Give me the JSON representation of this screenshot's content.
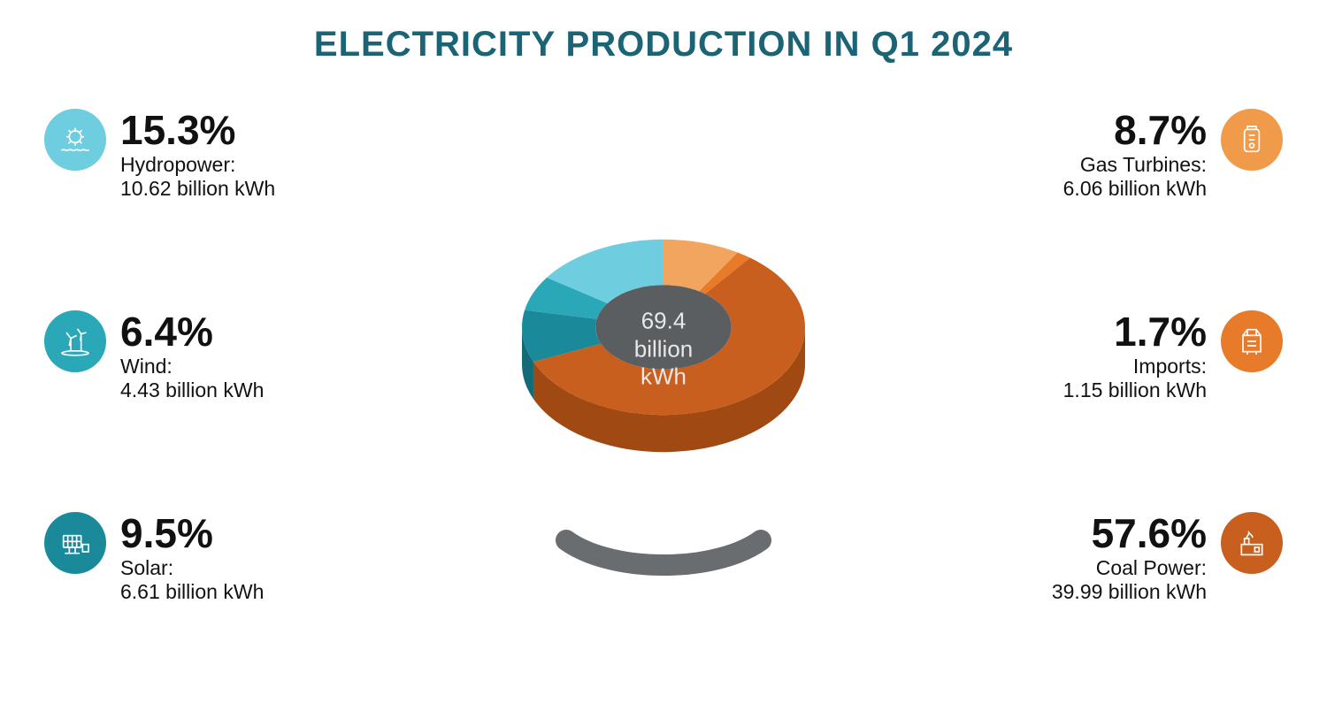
{
  "title": "ELECTRICITY PRODUCTION IN Q1 2024",
  "title_color": "#1a6475",
  "background_color": "#ffffff",
  "center": {
    "value": "69.4",
    "unit1": "billion",
    "unit2": "kWh",
    "bg_color": "#5b5e61",
    "text_color": "#e8e8e8"
  },
  "left": [
    {
      "percent": "15.3%",
      "label": "Hydropower:",
      "value": "10.62 billion kWh",
      "icon_color": "#6fcde0",
      "icon": "hydro"
    },
    {
      "percent": "6.4%",
      "label": "Wind:",
      "value": "4.43 billion kWh",
      "icon_color": "#2aa8b8",
      "icon": "wind"
    },
    {
      "percent": "9.5%",
      "label": "Solar:",
      "value": "6.61 billion kWh",
      "icon_color": "#1a8a9a",
      "icon": "solar"
    }
  ],
  "right": [
    {
      "percent": "8.7%",
      "label": "Gas Turbines:",
      "value": "6.06 billion kWh",
      "icon_color": "#f09b49",
      "icon": "gas"
    },
    {
      "percent": "1.7%",
      "label": "Imports:",
      "value": "1.15 billion kWh",
      "icon_color": "#e87b2a",
      "icon": "import"
    },
    {
      "percent": "57.6%",
      "label": "Coal Power:",
      "value": "39.99 billion kWh",
      "icon_color": "#c85f1e",
      "icon": "coal"
    }
  ],
  "pie": {
    "type": "pie-3d",
    "slices": [
      {
        "name": "Gas Turbines",
        "pct": 8.7,
        "color_top": "#f2a55e",
        "color_side": "#d6873f"
      },
      {
        "name": "Imports",
        "pct": 1.7,
        "color_top": "#e87b2a",
        "color_side": "#c4621c"
      },
      {
        "name": "Coal Power",
        "pct": 57.6,
        "color_top": "#c85f1e",
        "color_side": "#a04912"
      },
      {
        "name": "Solar",
        "pct": 9.5,
        "color_top": "#1a8a9a",
        "color_side": "#146b78"
      },
      {
        "name": "Wind",
        "pct": 6.4,
        "color_top": "#2aa8b8",
        "color_side": "#1f8492"
      },
      {
        "name": "Hydropower",
        "pct": 15.3,
        "color_top": "#6fcde0",
        "color_side": "#4fa8ba"
      }
    ],
    "inner_radius_ratio": 0.48,
    "tilt_ratio": 0.62,
    "depth": 42,
    "shadow_color": "#6a6d70"
  }
}
